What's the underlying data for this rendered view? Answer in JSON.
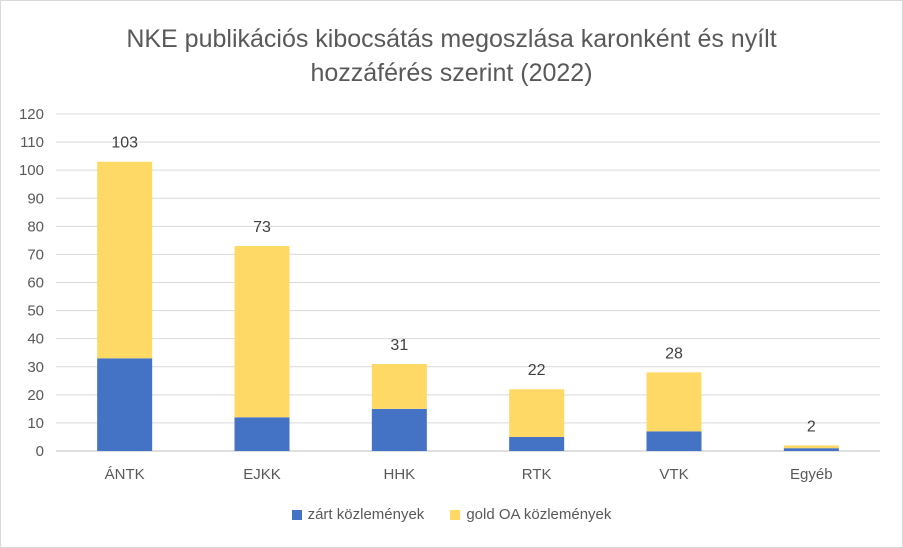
{
  "chart_data": {
    "type": "bar",
    "stacked": true,
    "title_line1": "NKE publikációs kibocsátás megoszlása karonként és nyílt",
    "title_line2": "hozzáférés szerint (2022)",
    "categories": [
      "ÁNTK",
      "EJKK",
      "HHK",
      "RTK",
      "VTK",
      "Egyéb"
    ],
    "series": [
      {
        "name": "zárt közlemények",
        "values": [
          33,
          12,
          15,
          5,
          7,
          1
        ],
        "color": "#4472C4"
      },
      {
        "name": "gold OA közlemények",
        "values": [
          70,
          61,
          16,
          17,
          21,
          1
        ],
        "color": "#FFD966"
      }
    ],
    "totals": [
      103,
      73,
      31,
      22,
      28,
      2
    ],
    "ylim": [
      0,
      120
    ],
    "ytick_step": 10,
    "grid": true,
    "legend_position": "bottom"
  }
}
